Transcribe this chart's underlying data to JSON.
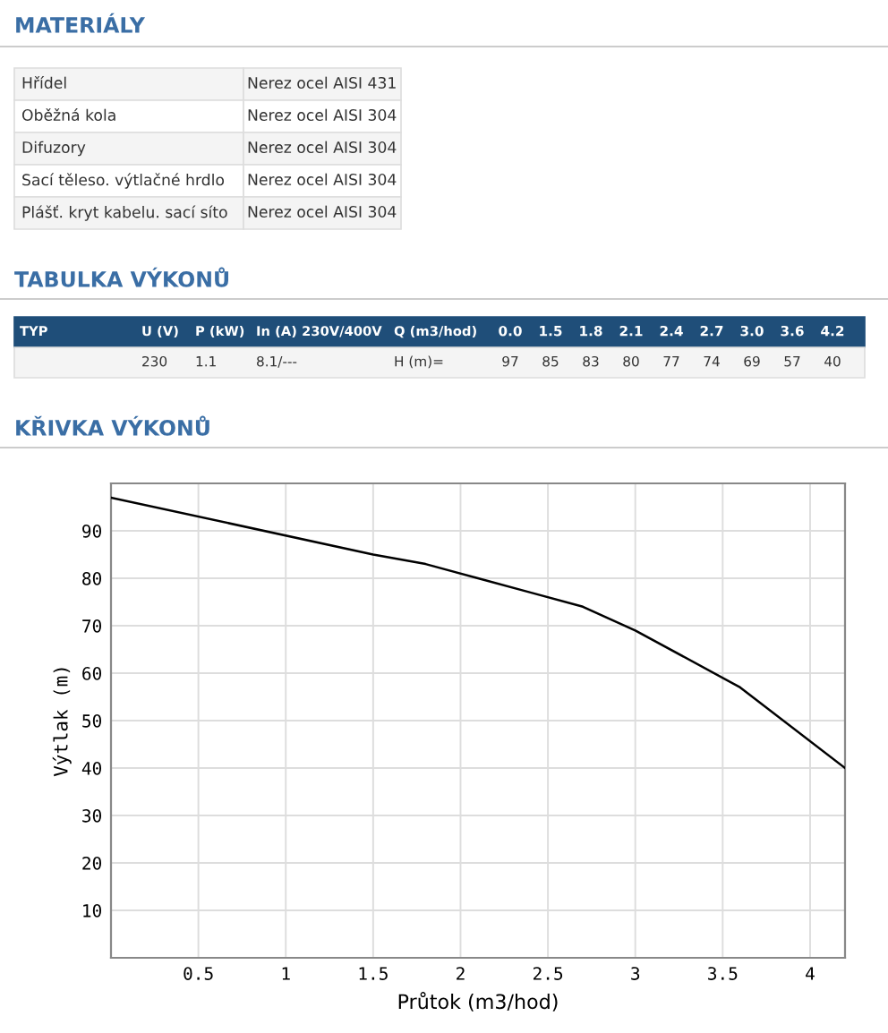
{
  "chart_data": {
    "type": "line",
    "title": "KŘIVKA VÝKONŮ",
    "xlabel": "Průtok (m3/hod)",
    "ylabel": "Výtlak (m)",
    "annotations": [
      "MATERIÁLY",
      "Hřídel",
      "Nerez ocel AISI 431",
      "Oběžná kola",
      "Nerez ocel AISI 304",
      "Difuzory",
      "Nerez ocel AISI 304",
      "Sací těleso. výtlačné hrdlo",
      "Nerez ocel AISI 304",
      "Plášť. kryt kabelu. sací síto",
      "Nerez ocel AISI 304",
      "TABULKA VÝKONŮ",
      "TYP",
      "U (V)",
      "P (kW)",
      "In (A) 230V/400V",
      "Q (m3/hod)",
      "230",
      "1.1",
      "8.1/---",
      "H (m)=",
      "0.0",
      "1.5",
      "1.8",
      "2.1",
      "2.4",
      "2.7",
      "3.0",
      "3.6",
      "4.2",
      "97",
      "85",
      "83",
      "80",
      "77",
      "74",
      "69",
      "57",
      "40"
    ],
    "x": [
      0.0,
      1.5,
      1.8,
      2.1,
      2.4,
      2.7,
      3.0,
      3.6,
      4.2
    ],
    "series": [
      {
        "color": "#000000",
        "values": [
          97,
          85,
          83,
          80,
          77,
          74,
          69,
          57,
          40
        ]
      }
    ],
    "xlim": [
      0,
      4.2
    ],
    "ylim": [
      0,
      100
    ],
    "xticks": [
      0.5,
      1,
      1.5,
      2,
      2.5,
      3,
      3.5,
      4
    ],
    "yticks": [
      10,
      20,
      30,
      40,
      50,
      60,
      70,
      80,
      90
    ],
    "grid": true,
    "marker": "none",
    "line_style": "solid"
  }
}
